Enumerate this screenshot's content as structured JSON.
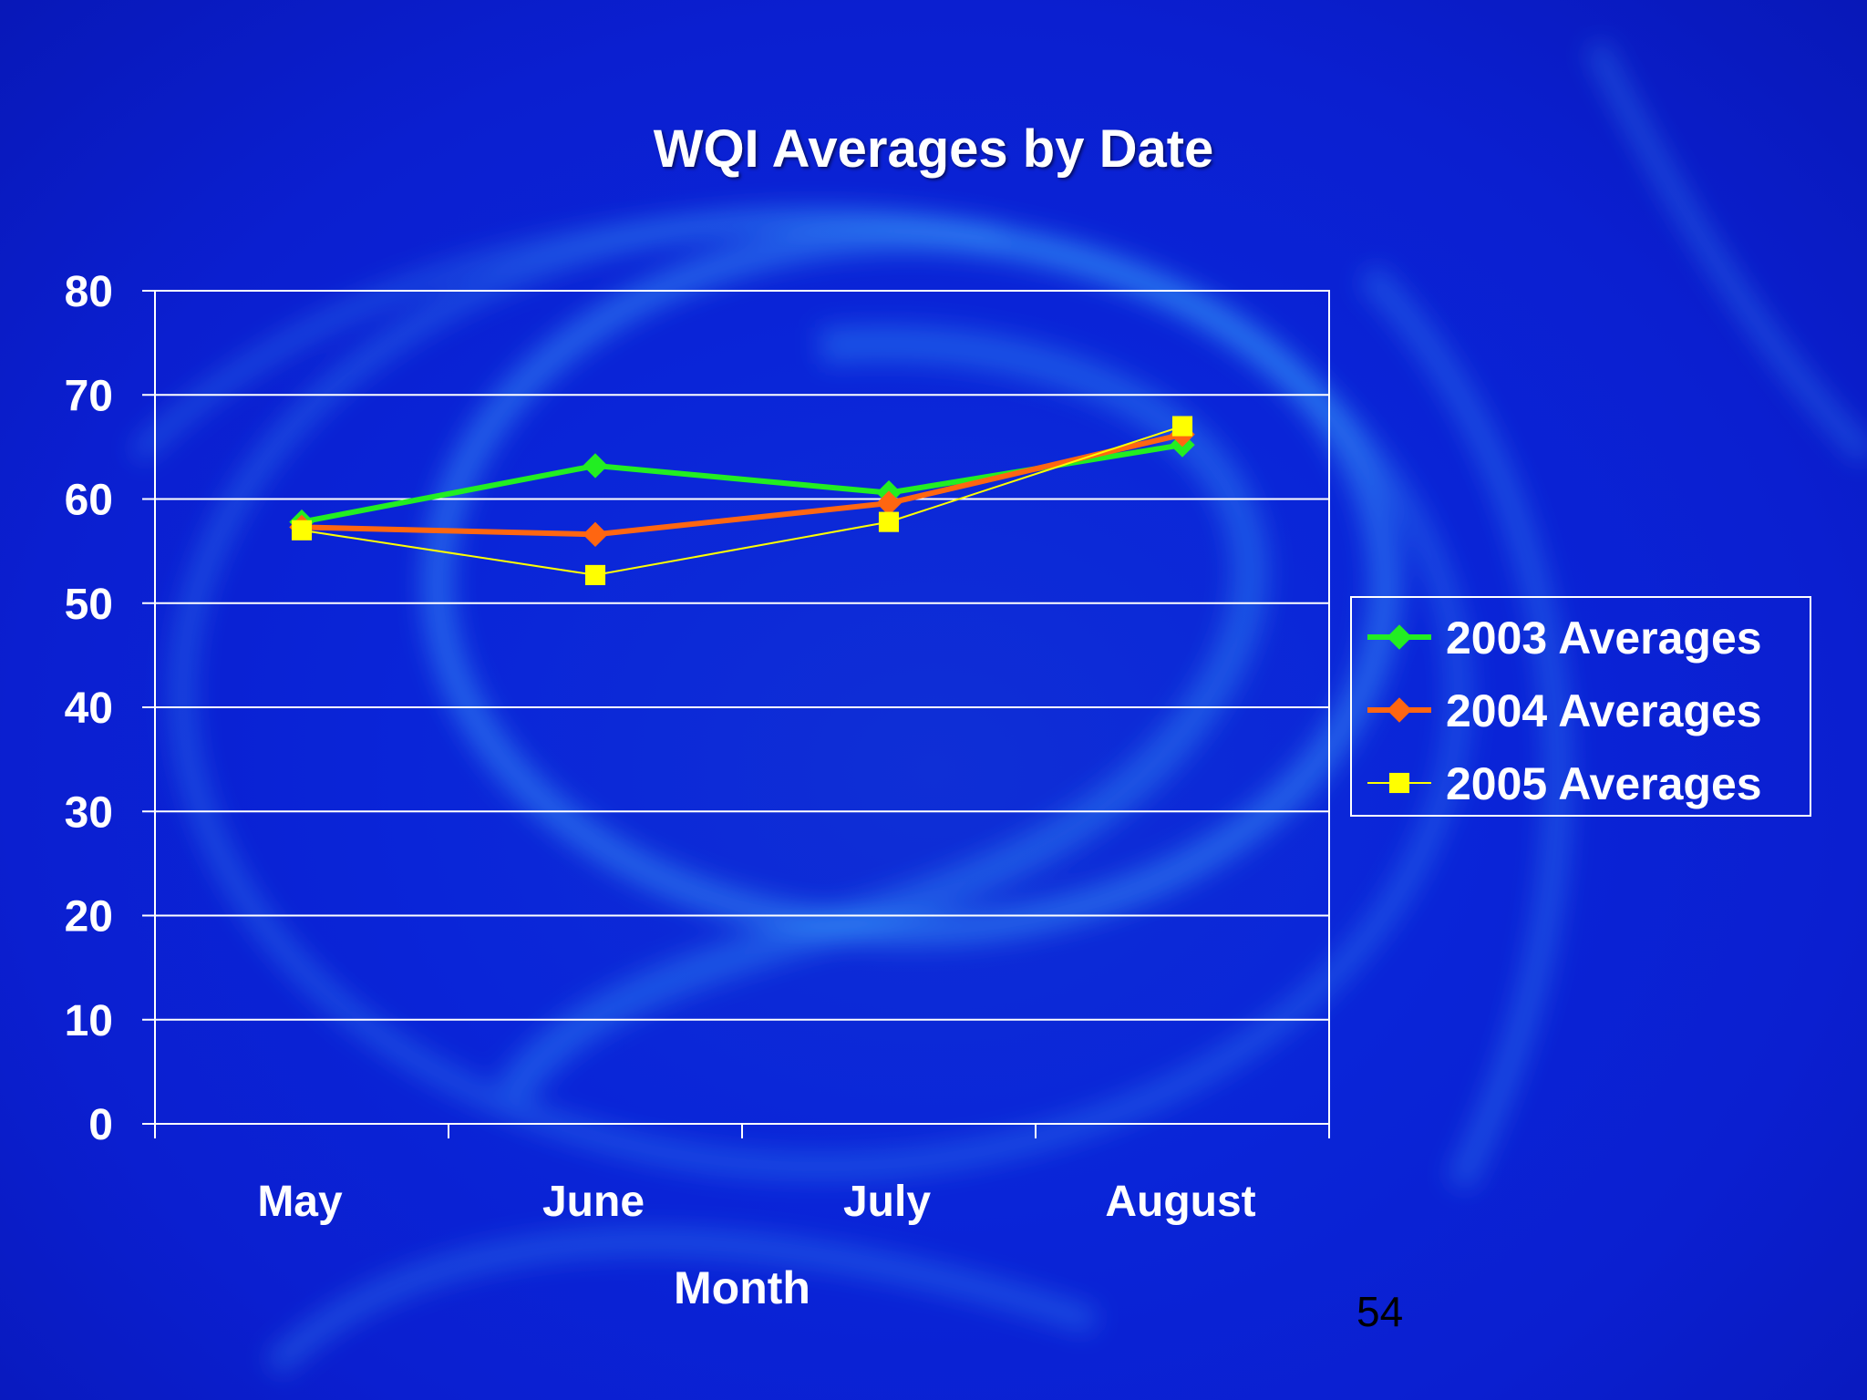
{
  "slide": {
    "page_number": "54"
  },
  "colors": {
    "background": "#0a25d8",
    "grid": "#ffffff",
    "text": "#ffffff",
    "series_2003": "#22ee22",
    "series_2004": "#ff6611",
    "series_2005": "#ffff00"
  },
  "chart_data": {
    "type": "line",
    "title": "WQI Averages by Date",
    "xlabel": "Month",
    "ylabel": "",
    "categories": [
      "May",
      "June",
      "July",
      "August"
    ],
    "ylim": [
      0,
      80
    ],
    "yticks": [
      0,
      10,
      20,
      30,
      40,
      50,
      60,
      70,
      80
    ],
    "grid": true,
    "legend_position": "right",
    "series": [
      {
        "name": "2003 Averages",
        "values": [
          57.8,
          63.2,
          60.6,
          65.2
        ],
        "color": "#22ee22",
        "marker": "diamond"
      },
      {
        "name": "2004 Averages",
        "values": [
          57.3,
          56.6,
          59.6,
          66.2
        ],
        "color": "#ff6611",
        "marker": "diamond"
      },
      {
        "name": "2005 Averages",
        "values": [
          57.0,
          52.7,
          57.8,
          67.0
        ],
        "color": "#ffff00",
        "marker": "square"
      }
    ]
  }
}
